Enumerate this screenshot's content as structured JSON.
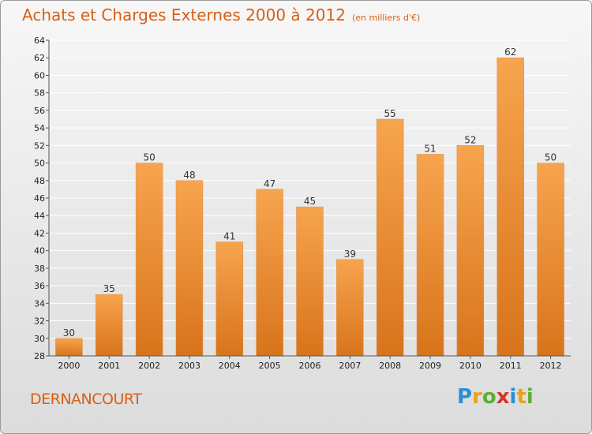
{
  "header": {
    "title": "Achats et Charges Externes 2000 à 2012",
    "subtitle": "(en milliers d'€)"
  },
  "footer": {
    "commune": "DERNANCOURT",
    "logo_letters": [
      "P",
      "r",
      "o",
      "x",
      "i",
      "t",
      "i"
    ],
    "logo_colors": [
      "#2a8fd4",
      "#e8a21a",
      "#5bb030",
      "#d8342a",
      "#2a8fd4",
      "#e8a21a",
      "#5bb030"
    ]
  },
  "colors": {
    "title": "#d85f14",
    "bar_top": "#f7a44f",
    "bar_bottom": "#d8741b",
    "grid": "#ffffff"
  },
  "chart_data": {
    "type": "bar",
    "title": "Achats et Charges Externes 2000 à 2012",
    "subtitle": "(en milliers d'€)",
    "xlabel": "",
    "ylabel": "",
    "categories": [
      "2000",
      "2001",
      "2002",
      "2003",
      "2004",
      "2005",
      "2006",
      "2007",
      "2008",
      "2009",
      "2010",
      "2011",
      "2012"
    ],
    "values": [
      30,
      35,
      50,
      48,
      41,
      47,
      45,
      39,
      55,
      51,
      52,
      62,
      50
    ],
    "ylim": [
      28,
      64
    ],
    "ytick_step": 2,
    "grid": true,
    "data_labels": true
  }
}
